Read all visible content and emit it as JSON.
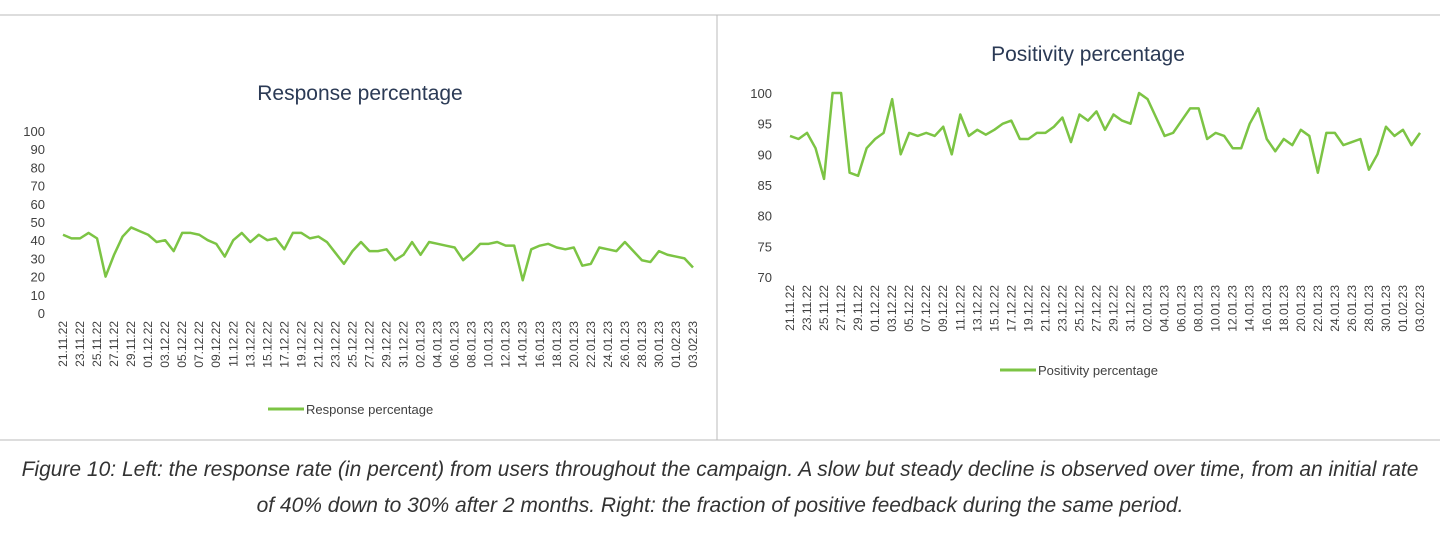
{
  "chart_data": [
    {
      "type": "line",
      "title": "Response percentage",
      "categories": [
        "21.11.22",
        null,
        "23.11.22",
        null,
        "25.11.22",
        null,
        "27.11.22",
        null,
        "29.11.22",
        null,
        "01.12.22",
        null,
        "03.12.22",
        null,
        "05.12.22",
        null,
        "07.12.22",
        null,
        "09.12.22",
        null,
        "11.12.22",
        null,
        "13.12.22",
        null,
        "15.12.22",
        null,
        "17.12.22",
        null,
        "19.12.22",
        null,
        "21.12.22",
        null,
        "23.12.22",
        null,
        "25.12.22",
        null,
        "27.12.22",
        null,
        "29.12.22",
        null,
        "31.12.22",
        null,
        "02.01.23",
        null,
        "04.01.23",
        null,
        "06.01.23",
        null,
        "08.01.23",
        null,
        "10.01.23",
        null,
        "12.01.23",
        null,
        "14.01.23",
        null,
        "16.01.23",
        null,
        "18.01.23",
        null,
        "20.01.23",
        null,
        "22.01.23",
        null,
        "24.01.23",
        null,
        "26.01.23",
        null,
        "28.01.23",
        null,
        "30.01.23",
        null,
        "01.02.23",
        null,
        "03.02.23"
      ],
      "series": [
        {
          "name": "Response percentage",
          "color": "#7cc444",
          "values": [
            43,
            41,
            41,
            44,
            41,
            20,
            32,
            42,
            47,
            45,
            43,
            39,
            40,
            34,
            44,
            44,
            43,
            40,
            38,
            31,
            40,
            44,
            39,
            43,
            40,
            41,
            35,
            44,
            44,
            41,
            42,
            39,
            33,
            27,
            34,
            39,
            34,
            34,
            35,
            29,
            32,
            39,
            32,
            39,
            38,
            37,
            36,
            29,
            33,
            38,
            38,
            39,
            37,
            37,
            18,
            35,
            37,
            38,
            36,
            35,
            36,
            26,
            27,
            36,
            35,
            34,
            39,
            34,
            29,
            28,
            34,
            32,
            31,
            30,
            25
          ]
        }
      ],
      "ylim": [
        0,
        100
      ],
      "yticks": [
        0,
        10,
        20,
        30,
        40,
        50,
        60,
        70,
        80,
        90,
        100
      ],
      "legend": "bottom"
    },
    {
      "type": "line",
      "title": "Positivity percentage",
      "categories": [
        "21.11.22",
        null,
        "23.11.22",
        null,
        "25.11.22",
        null,
        "27.11.22",
        null,
        "29.11.22",
        null,
        "01.12.22",
        null,
        "03.12.22",
        null,
        "05.12.22",
        null,
        "07.12.22",
        null,
        "09.12.22",
        null,
        "11.12.22",
        null,
        "13.12.22",
        null,
        "15.12.22",
        null,
        "17.12.22",
        null,
        "19.12.22",
        null,
        "21.12.22",
        null,
        "23.12.22",
        null,
        "25.12.22",
        null,
        "27.12.22",
        null,
        "29.12.22",
        null,
        "31.12.22",
        null,
        "02.01.23",
        null,
        "04.01.23",
        null,
        "06.01.23",
        null,
        "08.01.23",
        null,
        "10.01.23",
        null,
        "12.01.23",
        null,
        "14.01.23",
        null,
        "16.01.23",
        null,
        "18.01.23",
        null,
        "20.01.23",
        null,
        "22.01.23",
        null,
        "24.01.23",
        null,
        "26.01.23",
        null,
        "28.01.23",
        null,
        "30.01.23",
        null,
        "01.02.23",
        null,
        "03.02.23"
      ],
      "series": [
        {
          "name": "Positivity percentage",
          "color": "#7cc444",
          "values": [
            93,
            92.5,
            93.5,
            91,
            86,
            100,
            100,
            87,
            86.5,
            91,
            92.5,
            93.5,
            99,
            90,
            93.5,
            93,
            93.5,
            93,
            94.5,
            90,
            96.5,
            93,
            94,
            93.2,
            94,
            95,
            95.5,
            92.5,
            92.5,
            93.5,
            93.5,
            94.5,
            96,
            92,
            96.5,
            95.5,
            97,
            94,
            96.5,
            95.5,
            95,
            100,
            99,
            96,
            93,
            93.5,
            95.5,
            97.5,
            97.5,
            92.5,
            93.5,
            93,
            91,
            91,
            95,
            97.5,
            92.5,
            90.5,
            92.5,
            91.5,
            94,
            93,
            87,
            93.5,
            93.5,
            91.5,
            92,
            92.5,
            87.5,
            90,
            94.5,
            93,
            94,
            91.5,
            93.5
          ]
        }
      ],
      "ylim": [
        70,
        100
      ],
      "yticks": [
        70,
        75,
        80,
        85,
        90,
        95,
        100
      ],
      "legend": "bottom"
    }
  ],
  "caption": "Figure 10: Left: the response rate (in percent) from users throughout the campaign. A slow but steady decline is observed over time, from an initial rate of 40% down to 30% after 2 months. Right: the fraction of positive feedback during the same period."
}
